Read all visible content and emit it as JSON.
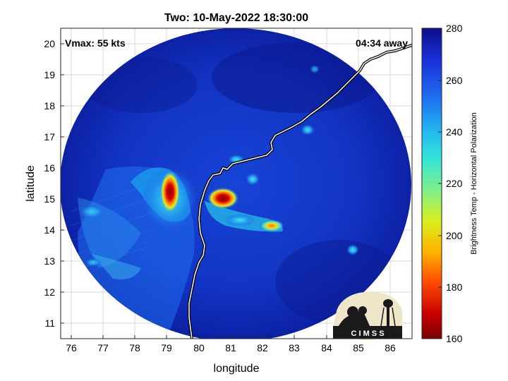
{
  "figure": {
    "title": "Two: 10-May-2022 18:30:00",
    "vmax_label": "Vmax: 55 kts",
    "away_label": "04:34 away",
    "xlabel": "longitude",
    "ylabel": "latitude",
    "x_ticks": [
      "76",
      "77",
      "78",
      "79",
      "80",
      "81",
      "82",
      "83",
      "84",
      "85",
      "86"
    ],
    "y_ticks": [
      "20",
      "19",
      "18",
      "17",
      "16",
      "15",
      "14",
      "13",
      "12",
      "11"
    ],
    "colorbar": {
      "label": "Brightness Temp - Horizontal Polarization",
      "ticks": [
        "280",
        "260",
        "240",
        "220",
        "200",
        "180",
        "160"
      ],
      "range": [
        160,
        280
      ],
      "stops": [
        "#0d0d8a",
        "#1a2fd8",
        "#1e6cf2",
        "#22b7f0",
        "#33e6d8",
        "#7cf08a",
        "#d8f01e",
        "#ffb300",
        "#ff4a00",
        "#c80000",
        "#7a0000"
      ]
    },
    "logo": {
      "text": "C I M S S"
    },
    "map_extent": {
      "lon": [
        76,
        86.3
      ],
      "lat": [
        10.5,
        20.5
      ]
    },
    "colors": {
      "background_scan": "#0a1fa8",
      "deep_blue": "#08137e",
      "coast": "#000000"
    }
  }
}
